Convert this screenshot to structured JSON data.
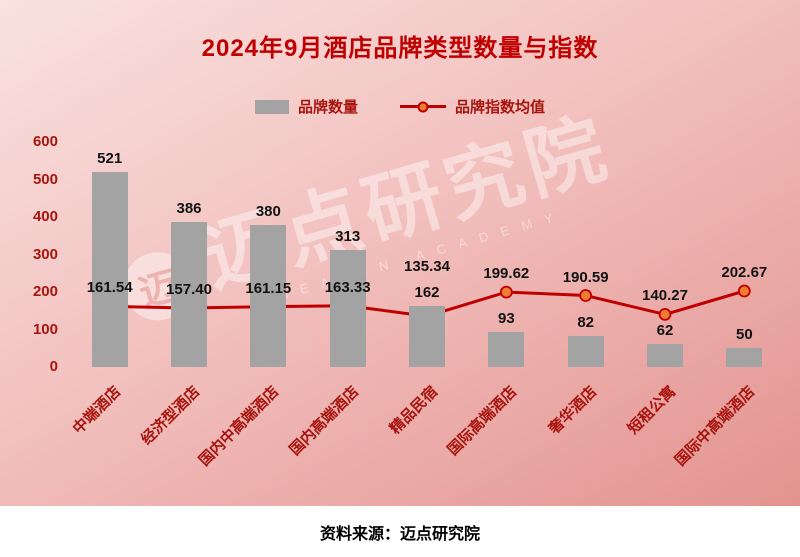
{
  "page": {
    "source": "资料来源：迈点研究院",
    "watermark": {
      "logo_char": "迈",
      "text": "迈点研究院",
      "subtext": "MEADIN ACADEMY"
    }
  },
  "legend": {
    "bars_label": "品牌数量",
    "line_label": "品牌指数均值"
  },
  "colors": {
    "title": "#c00000",
    "axis_label": "#a8150f",
    "bar": "#a3a3a3",
    "line": "#c00000",
    "marker": "#ed7d31",
    "value_label": "#121212"
  },
  "chart_data": {
    "type": "bar+line",
    "title": "2024年9月酒店品牌类型数量与指数",
    "categories": [
      "中端酒店",
      "经济型酒店",
      "国内中高端酒店",
      "国内高端酒店",
      "精品民宿",
      "国际高端酒店",
      "奢华酒店",
      "短租公寓",
      "国际中高端酒店"
    ],
    "series": [
      {
        "name": "品牌数量",
        "type": "bar",
        "color": "#a3a3a3",
        "values": [
          521,
          386,
          380,
          313,
          162,
          93,
          82,
          62,
          50
        ]
      },
      {
        "name": "品牌指数均值",
        "type": "line",
        "color": "#c00000",
        "marker_color": "#ed7d31",
        "values": [
          161.54,
          157.4,
          161.15,
          163.33,
          135.34,
          199.62,
          190.59,
          140.27,
          202.67
        ],
        "values_display": [
          "161.54",
          "157.40",
          "161.15",
          "163.33",
          "135.34",
          "199.62",
          "190.59",
          "140.27",
          "202.67"
        ]
      }
    ],
    "y_ticks": [
      0,
      100,
      200,
      300,
      400,
      500,
      600
    ],
    "ylim": [
      0,
      600
    ],
    "grid": false,
    "legend_position": "top"
  }
}
